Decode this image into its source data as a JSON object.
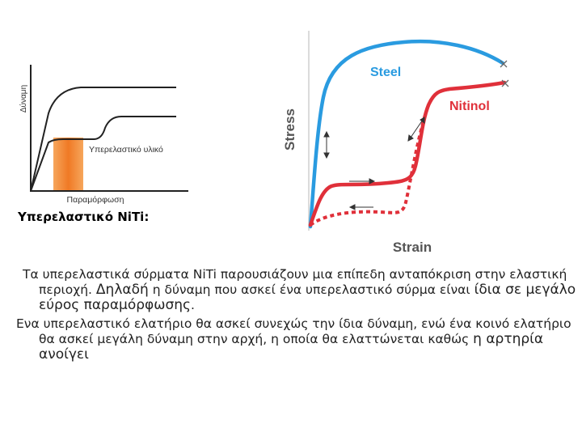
{
  "left_chart": {
    "ylabel": "Δύναμη",
    "xlabel": "Παραμόρφωση",
    "curve_label": "Υπερελαστικό υλικό"
  },
  "right_chart": {
    "ylabel": "Stress",
    "xlabel": "Strain",
    "series": [
      {
        "name": "Steel",
        "color": "#2a9be0"
      },
      {
        "name": "Nitinol",
        "color": "#e0303a"
      }
    ],
    "accent_orange": "#f0873a"
  },
  "heading": "Υπερελαστικό NiTi:",
  "paragraphs": [
    {
      "parts": [
        "Τα υπερελαστικά σύρματα NiTi παρουσιάζουν μια επίπεδη ανταπόκριση στην ελαστική περιοχή. ",
        "Δηλαδή",
        " η δύναμη που ασκεί ένα υπερελαστικό σύρμα είναι ",
        "ίδια σε μεγάλο εύρος παραμόρφωσης",
        "."
      ]
    },
    {
      "parts": [
        "Ενα υπερελαστικό ελατήριο θα ασκεί συνεχώς την ίδια δύναμη, ενώ ένα κοινό ελατήριο θα ασκεί μεγάλη δύναμη στην αρχή, η οποία θα ελαττώνεται καθώς ",
        "η αρτηρία ανοίγει"
      ]
    }
  ]
}
